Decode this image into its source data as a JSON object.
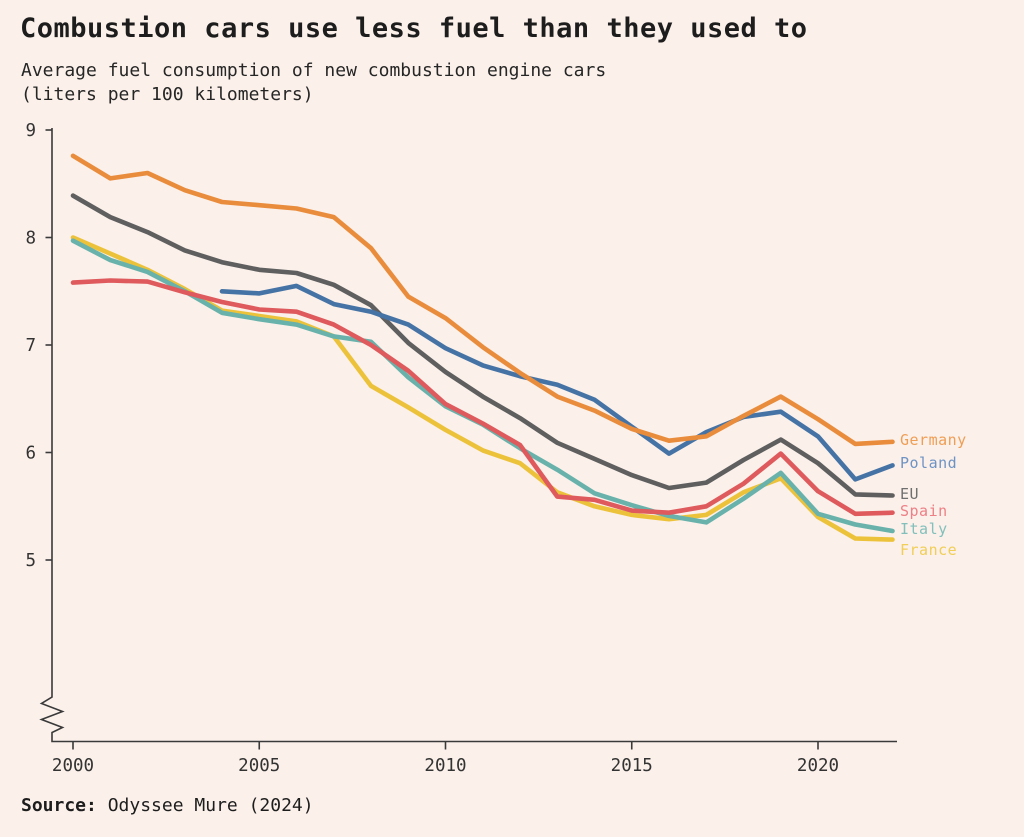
{
  "title": "Combustion cars use less fuel than they used to",
  "subtitle_line1": "Average fuel consumption of new combustion engine cars",
  "subtitle_line2": "(liters per 100 kilometers)",
  "source": {
    "label": "Source:",
    "text": "Odyssee Mure (2024)"
  },
  "colors": {
    "background": "#FBF0EA",
    "axis": "#3A3A3A",
    "tick_text": "#333333",
    "heading_text": "#1D1D1D"
  },
  "chart_data": {
    "type": "line",
    "title": "Combustion cars use less fuel than they used to",
    "subtitle": "Average fuel consumption of new combustion engine cars (liters per 100 kilometers)",
    "xlabel": "",
    "ylabel": "liters per 100 kilometers",
    "xlim": [
      2000,
      2022.2
    ],
    "ylim_shown": [
      5,
      9
    ],
    "y_axis_break": true,
    "grid": false,
    "legend_position": "right-of-line-ends",
    "years": [
      2000,
      2001,
      2002,
      2003,
      2004,
      2005,
      2006,
      2007,
      2008,
      2009,
      2010,
      2011,
      2012,
      2013,
      2014,
      2015,
      2016,
      2017,
      2018,
      2019,
      2020,
      2021,
      2022
    ],
    "x_ticks": [
      2000,
      2005,
      2010,
      2015,
      2020
    ],
    "y_ticks": [
      9,
      8,
      7,
      6,
      5
    ],
    "series": [
      {
        "name": "Germany",
        "color": "#E98C3C",
        "label_color": "#EF9E55",
        "values": [
          8.76,
          8.55,
          8.6,
          8.44,
          8.33,
          8.3,
          8.27,
          8.19,
          7.9,
          7.45,
          7.25,
          6.98,
          6.74,
          6.52,
          6.39,
          6.22,
          6.11,
          6.15,
          6.34,
          6.52,
          6.31,
          6.08,
          6.1
        ]
      },
      {
        "name": "Poland",
        "color": "#4673A5",
        "label_color": "#6E93C4",
        "values": [
          null,
          null,
          null,
          null,
          7.5,
          7.48,
          7.55,
          7.38,
          7.31,
          7.19,
          6.97,
          6.81,
          6.71,
          6.63,
          6.49,
          6.24,
          5.99,
          6.19,
          6.33,
          6.38,
          6.15,
          5.75,
          5.88
        ]
      },
      {
        "name": "EU",
        "color": "#5F5F5F",
        "label_color": "#6F6F6F",
        "values": [
          8.39,
          8.19,
          8.05,
          7.88,
          7.77,
          7.7,
          7.67,
          7.56,
          7.37,
          7.02,
          6.75,
          6.52,
          6.32,
          6.09,
          5.94,
          5.79,
          5.67,
          5.72,
          5.93,
          6.12,
          5.9,
          5.61,
          5.6
        ]
      },
      {
        "name": "Spain",
        "color": "#DE5A5C",
        "label_color": "#ED8086",
        "values": [
          7.58,
          7.6,
          7.59,
          7.49,
          7.4,
          7.33,
          7.31,
          7.19,
          7.0,
          6.76,
          6.45,
          6.27,
          6.07,
          5.59,
          5.56,
          5.46,
          5.44,
          5.5,
          5.71,
          5.99,
          5.64,
          5.43,
          5.44
        ]
      },
      {
        "name": "Italy",
        "color": "#68B2AB",
        "label_color": "#83C0BC",
        "values": [
          7.97,
          7.79,
          7.68,
          7.5,
          7.3,
          7.24,
          7.19,
          7.08,
          7.03,
          6.7,
          6.43,
          6.26,
          6.04,
          5.84,
          5.62,
          5.51,
          5.41,
          5.35,
          5.57,
          5.81,
          5.43,
          5.33,
          5.27
        ]
      },
      {
        "name": "France",
        "color": "#ECC23B",
        "label_color": "#F0CE57",
        "label_dy": 12,
        "values": [
          8.0,
          7.85,
          7.7,
          7.52,
          7.32,
          7.27,
          7.22,
          7.08,
          6.62,
          6.42,
          6.21,
          6.02,
          5.9,
          5.63,
          5.5,
          5.42,
          5.38,
          5.42,
          5.63,
          5.76,
          5.4,
          5.2,
          5.19
        ]
      }
    ]
  }
}
